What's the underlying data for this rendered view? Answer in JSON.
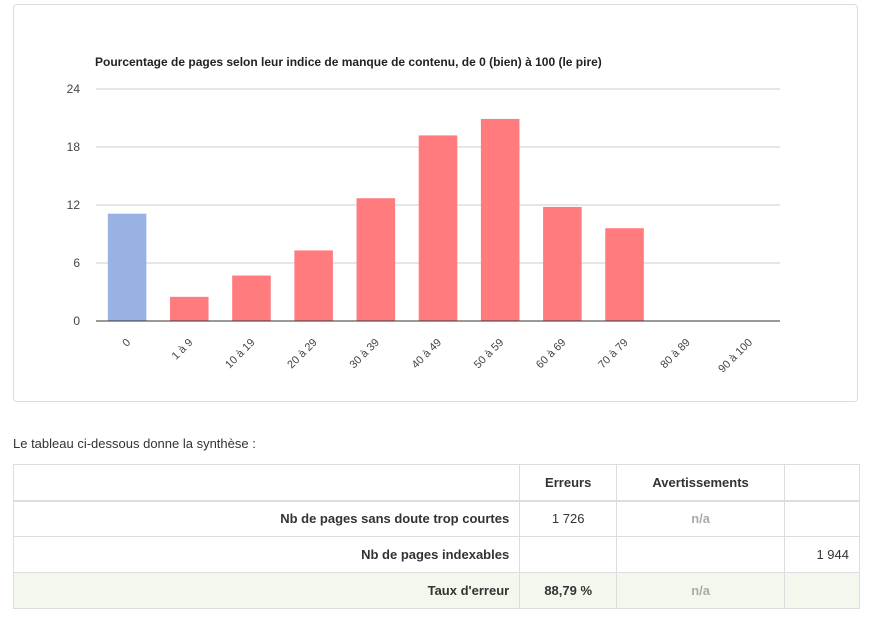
{
  "chart_data": {
    "type": "bar",
    "title": "Pourcentage de pages selon leur indice de manque de contenu, de 0 (bien) à 100 (le pire)",
    "categories": [
      "0",
      "1 à 9",
      "10 à 19",
      "20 à 29",
      "30 à 39",
      "40 à 49",
      "50 à 59",
      "60 à 69",
      "70 à 79",
      "80 à 89",
      "90 à 100"
    ],
    "values": [
      11.1,
      2.5,
      4.7,
      7.3,
      12.7,
      19.2,
      20.9,
      11.8,
      9.6,
      0,
      0
    ],
    "colors": [
      "#98b2e4",
      "#ff7b7e",
      "#ff7b7e",
      "#ff7b7e",
      "#ff7b7e",
      "#ff7b7e",
      "#ff7b7e",
      "#ff7b7e",
      "#ff7b7e",
      "#ff7b7e",
      "#ff7b7e"
    ],
    "yticks": [
      0,
      6,
      12,
      18,
      24
    ],
    "ylim": [
      0,
      24
    ],
    "xlabel": "",
    "ylabel": "",
    "grid": true
  },
  "intro": "Le tableau ci-dessous donne la synthèse :",
  "table": {
    "headers": [
      "",
      "Erreurs",
      "Avertissements",
      ""
    ],
    "rows": [
      {
        "label": "Nb de pages sans doute trop courtes",
        "errors": "1 726",
        "warnings": "n/a",
        "extra": ""
      },
      {
        "label": "Nb de pages indexables",
        "errors": "",
        "warnings": "",
        "extra": "1 944"
      },
      {
        "label": "Taux d'erreur",
        "errors": "88,79 %",
        "warnings": "n/a",
        "extra": ""
      }
    ]
  }
}
